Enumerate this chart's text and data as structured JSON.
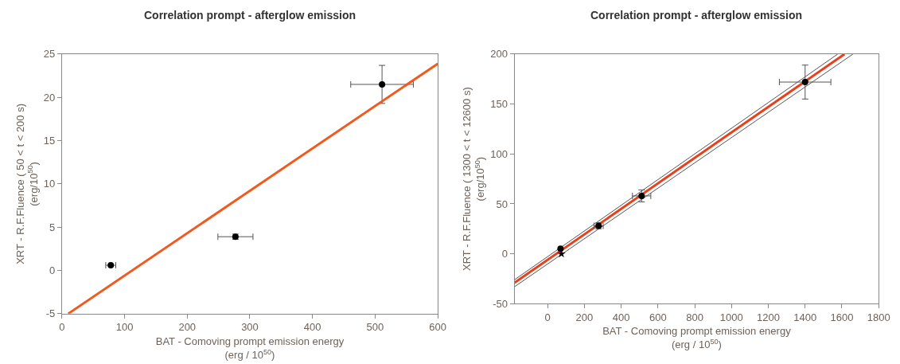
{
  "chart_data": [
    {
      "type": "scatter",
      "title": "Correlation prompt - afterglow emission",
      "xlabel": "BAT - Comoving prompt emission energy\n(erg / 10$^{50}$)",
      "ylabel": "XRT - R.F.Fluence ( 50 < t < 200 s)\n(erg/10$^{50}$)",
      "xlim": [
        0,
        600
      ],
      "xticks": [
        0,
        100,
        200,
        300,
        400,
        500,
        600
      ],
      "ylim": [
        -5,
        25
      ],
      "yticks": [
        -5,
        0,
        5,
        10,
        15,
        20,
        25
      ],
      "series": [
        {
          "type": "scatter",
          "marker": "circle",
          "color": "#000000",
          "x": [
            78,
            277,
            511
          ],
          "values": [
            0.6,
            3.9,
            21.5
          ],
          "errors": [
            null,
            0.3,
            2.2
          ],
          "xerrors": [
            8,
            28,
            50
          ]
        },
        {
          "type": "line",
          "line_style": "solid",
          "color": "#f05a1e",
          "x": [
            10,
            600
          ],
          "values": [
            -5,
            23.9
          ]
        }
      ]
    },
    {
      "type": "scatter",
      "title": "Correlation prompt - afterglow emission",
      "xlabel": "BAT - Comoving prompt emission energy\n(erg / 10$^{50}$)",
      "ylabel": "XRT - R.F.Fluence ( 1300 < t < 12600 s)\n(erg/10$^{50}$)",
      "xlim": [
        -180,
        1800
      ],
      "xticks": [
        0,
        200,
        400,
        600,
        800,
        1000,
        1200,
        1400,
        1600,
        1800
      ],
      "ylim": [
        -50,
        200
      ],
      "yticks": [
        -50,
        0,
        50,
        100,
        150,
        200
      ],
      "series": [
        {
          "type": "line",
          "line_style": "solid",
          "color": "#555555",
          "x": [
            -180,
            1577
          ],
          "values": [
            -26,
            200
          ]
        },
        {
          "type": "line",
          "line_style": "solid",
          "color": "#555555",
          "x": [
            -180,
            1660
          ],
          "values": [
            -33,
            200
          ]
        },
        {
          "type": "line",
          "line_style": "solid",
          "color": "#e8401c",
          "x": [
            -180,
            1614
          ],
          "values": [
            -29,
            200
          ]
        },
        {
          "type": "scatter",
          "marker": "circle",
          "color": "#000000",
          "x": [
            70,
            277,
            511,
            1400
          ],
          "values": [
            5,
            28,
            58,
            172
          ],
          "errors": [
            null,
            3,
            6,
            17
          ],
          "xerrors": [
            null,
            25,
            50,
            140
          ]
        },
        {
          "type": "scatter",
          "marker": "star",
          "color": "#000000",
          "x": [
            75
          ],
          "values": [
            0
          ],
          "errors": [
            null
          ],
          "xerrors": [
            null
          ]
        }
      ]
    }
  ]
}
